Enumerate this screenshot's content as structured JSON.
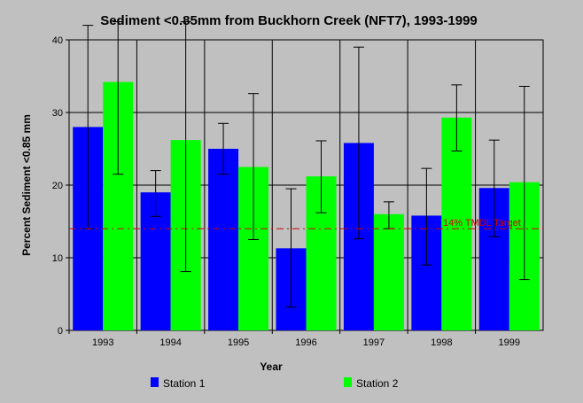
{
  "chart_data": {
    "type": "bar",
    "title": "Sediment <0.85mm from Buckhorn Creek (NFT7), 1993-1999",
    "xlabel": "Year",
    "ylabel": "Percent Sediment <0.85 mm",
    "ylim": [
      0,
      40
    ],
    "yticks": [
      0,
      10,
      20,
      30,
      40
    ],
    "grid": true,
    "legend_position": "bottom",
    "categories": [
      "1993",
      "1994",
      "1995",
      "1996",
      "1997",
      "1998",
      "1999"
    ],
    "series": [
      {
        "name": "Station 1",
        "color": "#0000ff",
        "values": [
          28,
          19,
          25,
          11.3,
          25.8,
          15.8,
          19.6
        ],
        "error_low": [
          14,
          15.7,
          21.5,
          3.2,
          12.6,
          9,
          12.9
        ],
        "error_high": [
          42,
          22,
          28.5,
          19.5,
          39,
          22.3,
          26.2
        ]
      },
      {
        "name": "Station 2",
        "color": "#00ff00",
        "values": [
          34.2,
          26.2,
          22.5,
          21.2,
          16,
          29.3,
          20.4
        ],
        "error_low": [
          21.5,
          8.1,
          12.5,
          16.2,
          14,
          24.7,
          7
        ],
        "error_high": [
          46,
          43.5,
          32.6,
          26.1,
          17.7,
          33.8,
          33.6
        ]
      }
    ],
    "reference_line": {
      "value": 14,
      "label": "14% TMDL Target",
      "color": "#cc0000"
    }
  }
}
